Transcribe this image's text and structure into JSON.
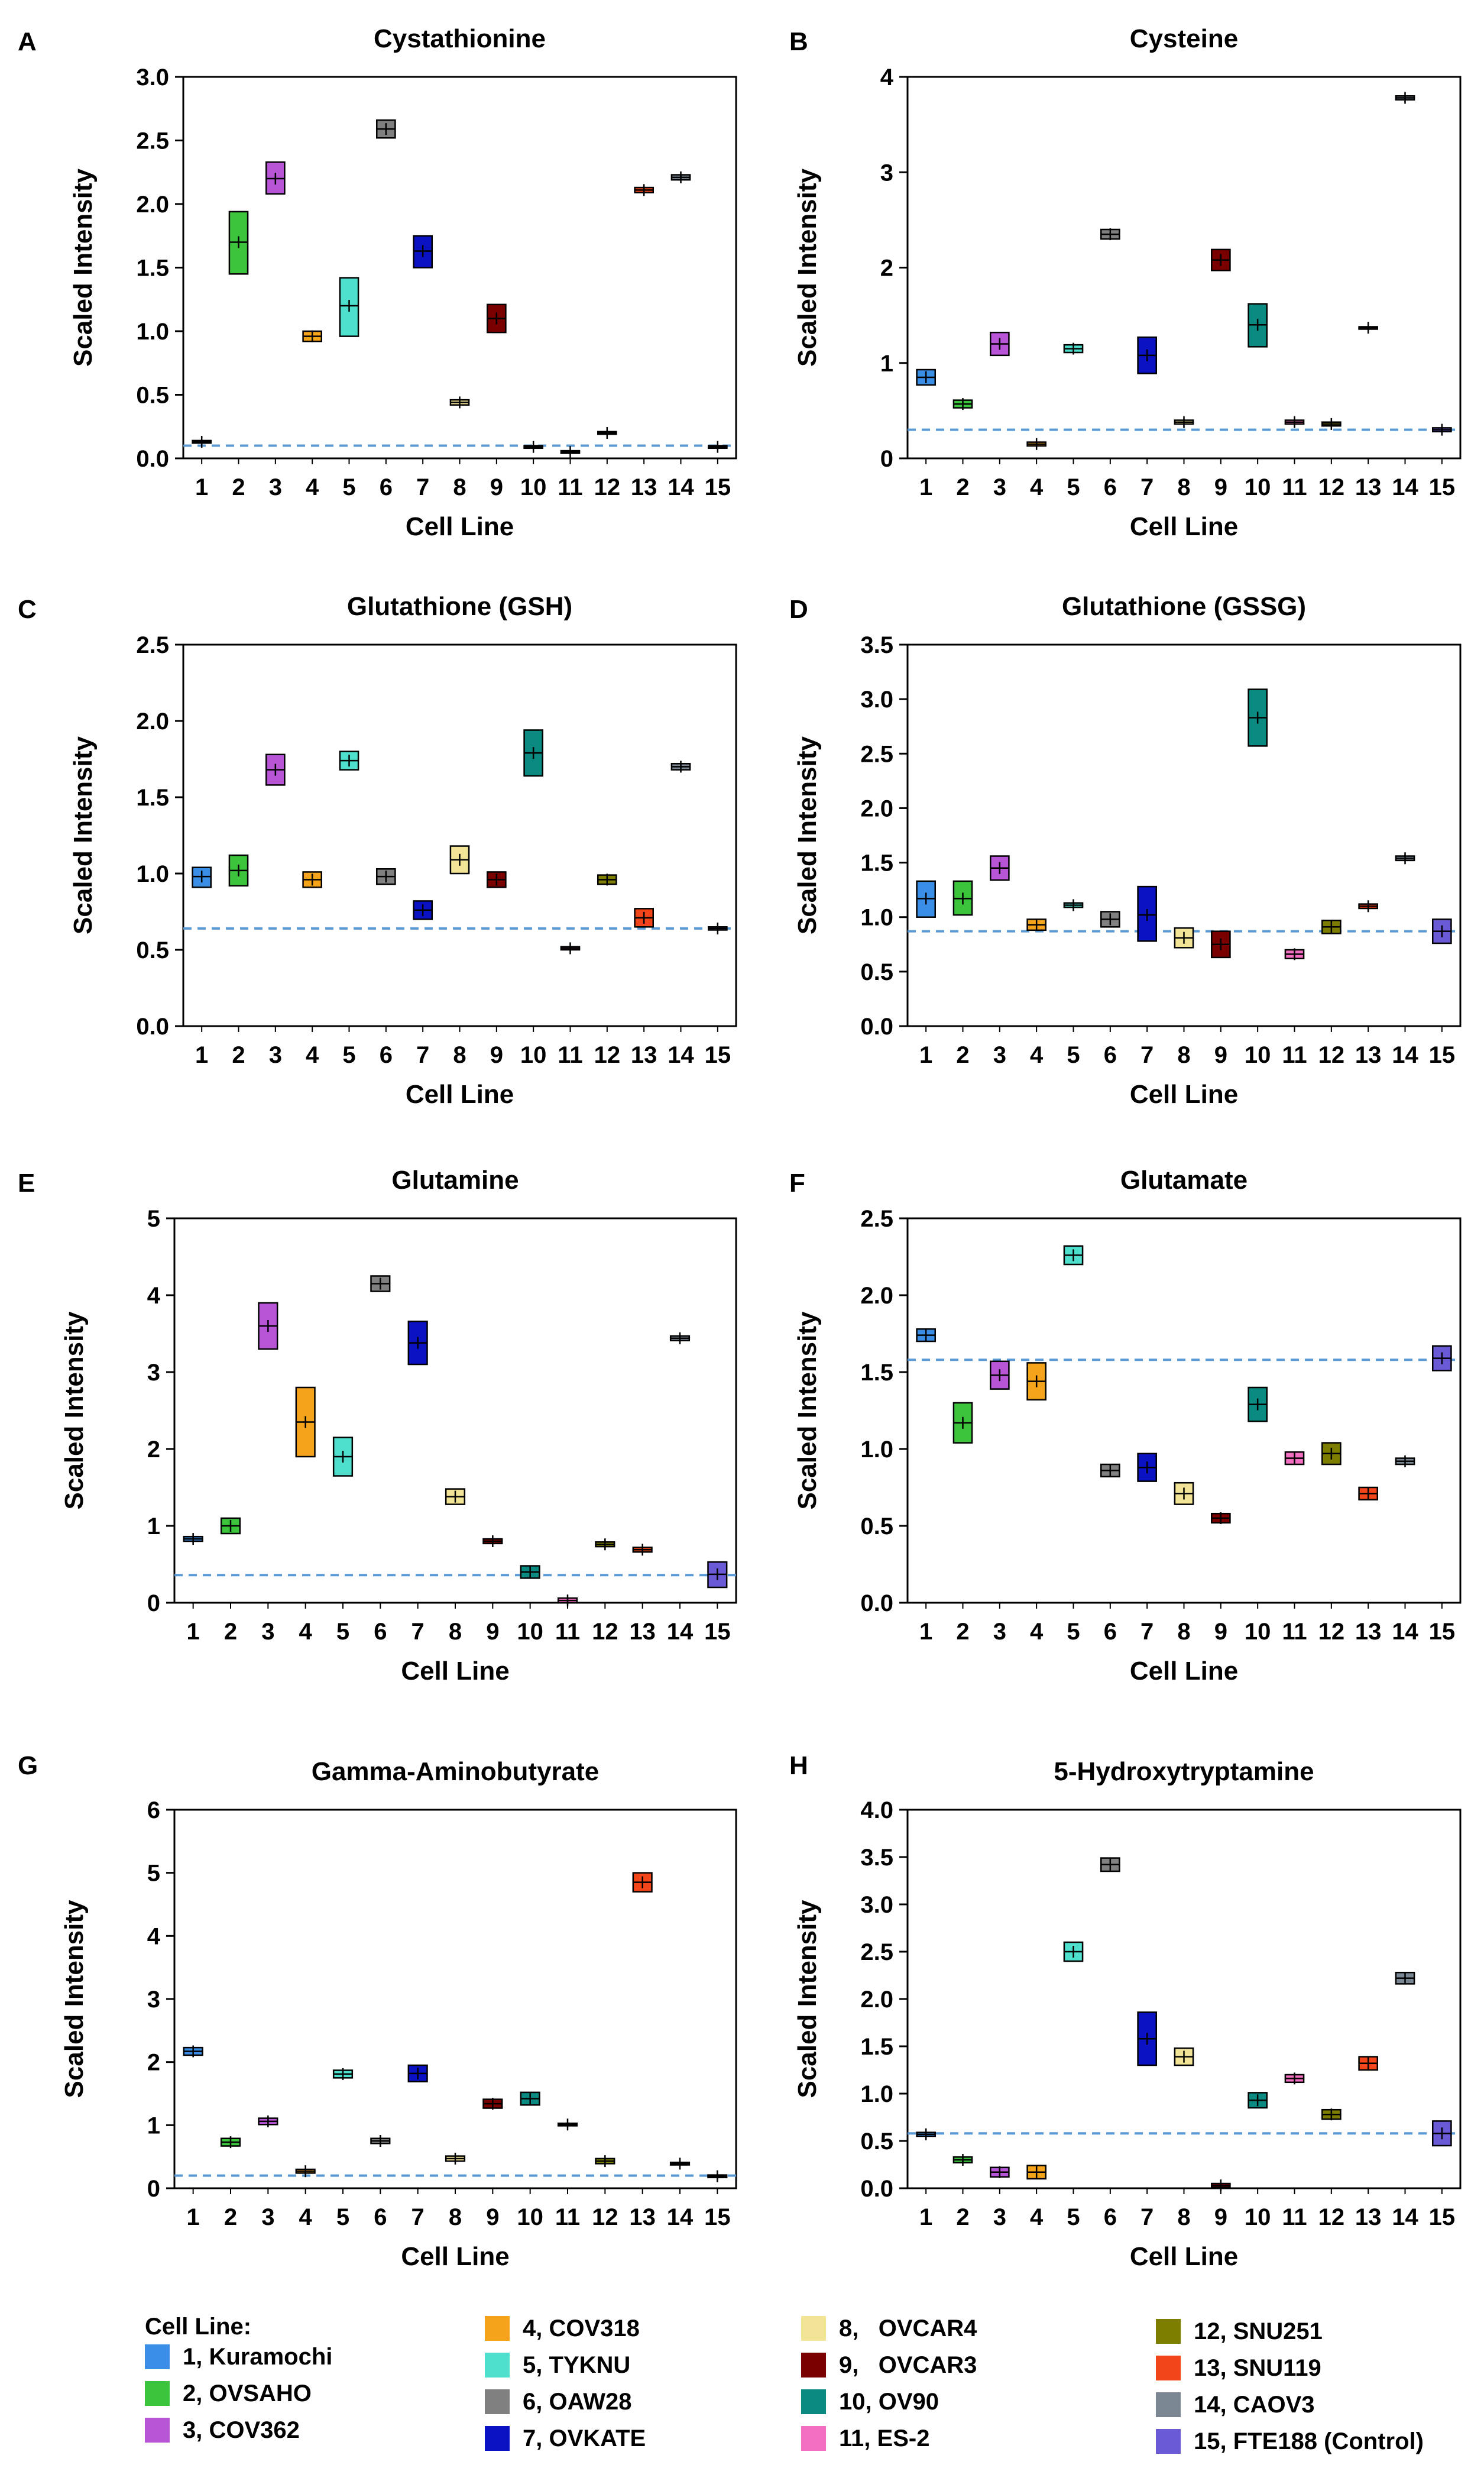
{
  "colors": {
    "cell_lines": [
      "#3a8ee6",
      "#3cc43c",
      "#b755d6",
      "#f5a31a",
      "#4ee0cc",
      "#808080",
      "#0b12c4",
      "#f2e496",
      "#7a0000",
      "#0a8a80",
      "#f26ec0",
      "#7d7d00",
      "#f2461a",
      "#7a8692",
      "#6a5ad6"
    ],
    "dashed_line": "#5b9bd5",
    "box_edge": "#000000"
  },
  "chart_data": [
    {
      "panel_label": "A",
      "type": "box",
      "title": "Cystathionine",
      "xlabel": "Cell Line",
      "ylabel": "Scaled Intensity",
      "ylim": [
        0,
        3.0
      ],
      "yticks": [
        "0.0",
        "0.5",
        "1.0",
        "1.5",
        "2.0",
        "2.5",
        "3.0"
      ],
      "categories": [
        "1",
        "2",
        "3",
        "4",
        "5",
        "6",
        "7",
        "8",
        "9",
        "10",
        "11",
        "12",
        "13",
        "14",
        "15"
      ],
      "low": [
        0.12,
        1.45,
        2.08,
        0.92,
        0.96,
        2.52,
        1.5,
        0.42,
        0.99,
        0.08,
        0.04,
        0.19,
        2.09,
        2.19,
        0.08
      ],
      "mid": [
        0.13,
        1.7,
        2.2,
        0.96,
        1.2,
        2.59,
        1.63,
        0.44,
        1.1,
        0.09,
        0.05,
        0.2,
        2.11,
        2.21,
        0.09
      ],
      "high": [
        0.14,
        1.94,
        2.33,
        1.0,
        1.42,
        2.66,
        1.75,
        0.46,
        1.21,
        0.1,
        0.06,
        0.21,
        2.13,
        2.23,
        0.1
      ],
      "control_line": 0.1
    },
    {
      "panel_label": "B",
      "type": "box",
      "title": "Cysteine",
      "xlabel": "Cell Line",
      "ylabel": "Scaled Intensity",
      "ylim": [
        0,
        4
      ],
      "yticks": [
        "0",
        "1",
        "2",
        "3",
        "4"
      ],
      "categories": [
        "1",
        "2",
        "3",
        "4",
        "5",
        "6",
        "7",
        "8",
        "9",
        "10",
        "11",
        "12",
        "13",
        "14",
        "15"
      ],
      "low": [
        0.77,
        0.53,
        1.08,
        0.13,
        1.11,
        2.3,
        0.89,
        0.36,
        1.97,
        1.17,
        0.36,
        0.34,
        1.36,
        3.76,
        0.28
      ],
      "mid": [
        0.85,
        0.57,
        1.2,
        0.15,
        1.15,
        2.35,
        1.08,
        0.38,
        2.08,
        1.4,
        0.38,
        0.36,
        1.37,
        3.78,
        0.3
      ],
      "high": [
        0.93,
        0.61,
        1.32,
        0.17,
        1.19,
        2.4,
        1.27,
        0.4,
        2.19,
        1.62,
        0.4,
        0.38,
        1.38,
        3.8,
        0.32
      ],
      "control_line": 0.3
    },
    {
      "panel_label": "C",
      "type": "box",
      "title": "Glutathione (GSH)",
      "xlabel": "Cell Line",
      "ylabel": "Scaled Intensity",
      "ylim": [
        0,
        2.5
      ],
      "yticks": [
        "0.0",
        "0.5",
        "1.0",
        "1.5",
        "2.0",
        "2.5"
      ],
      "categories": [
        "1",
        "2",
        "3",
        "4",
        "5",
        "6",
        "7",
        "8",
        "9",
        "10",
        "11",
        "12",
        "13",
        "14",
        "15"
      ],
      "low": [
        0.91,
        0.92,
        1.58,
        0.91,
        1.68,
        0.93,
        0.7,
        1.0,
        0.91,
        1.64,
        0.5,
        0.93,
        0.65,
        1.68,
        0.63
      ],
      "mid": [
        0.98,
        1.02,
        1.68,
        0.96,
        1.74,
        0.98,
        0.76,
        1.09,
        0.96,
        1.79,
        0.51,
        0.96,
        0.71,
        1.7,
        0.64
      ],
      "high": [
        1.04,
        1.12,
        1.78,
        1.01,
        1.8,
        1.03,
        0.82,
        1.18,
        1.01,
        1.94,
        0.52,
        0.99,
        0.77,
        1.72,
        0.65
      ],
      "control_line": 0.64
    },
    {
      "panel_label": "D",
      "type": "box",
      "title": "Glutathione (GSSG)",
      "xlabel": "Cell Line",
      "ylabel": "Scaled Intensity",
      "ylim": [
        0,
        3.5
      ],
      "yticks": [
        "0.0",
        "0.5",
        "1.0",
        "1.5",
        "2.0",
        "2.5",
        "3.0",
        "3.5"
      ],
      "categories": [
        "1",
        "2",
        "3",
        "4",
        "5",
        "6",
        "7",
        "8",
        "9",
        "10",
        "11",
        "12",
        "13",
        "14",
        "15"
      ],
      "low": [
        1.0,
        1.02,
        1.34,
        0.88,
        1.09,
        0.91,
        0.78,
        0.72,
        0.63,
        2.57,
        0.62,
        0.85,
        1.08,
        1.52,
        0.76
      ],
      "mid": [
        1.17,
        1.17,
        1.45,
        0.93,
        1.11,
        0.98,
        1.02,
        0.81,
        0.75,
        2.83,
        0.66,
        0.91,
        1.1,
        1.54,
        0.87
      ],
      "high": [
        1.33,
        1.33,
        1.56,
        0.98,
        1.13,
        1.05,
        1.28,
        0.9,
        0.87,
        3.09,
        0.7,
        0.97,
        1.12,
        1.56,
        0.98
      ],
      "control_line": 0.87
    },
    {
      "panel_label": "E",
      "type": "box",
      "title": "Glutamine",
      "xlabel": "Cell Line",
      "ylabel": "Scaled Intensity",
      "ylim": [
        0,
        5
      ],
      "yticks": [
        "0",
        "1",
        "2",
        "3",
        "4",
        "5"
      ],
      "categories": [
        "1",
        "2",
        "3",
        "4",
        "5",
        "6",
        "7",
        "8",
        "9",
        "10",
        "11",
        "12",
        "13",
        "14",
        "15"
      ],
      "low": [
        0.8,
        0.9,
        3.3,
        1.9,
        1.65,
        4.05,
        3.1,
        1.28,
        0.77,
        0.32,
        0.0,
        0.73,
        0.66,
        3.41,
        0.2
      ],
      "mid": [
        0.83,
        1.0,
        3.6,
        2.35,
        1.9,
        4.15,
        3.38,
        1.38,
        0.8,
        0.4,
        0.03,
        0.76,
        0.69,
        3.44,
        0.37
      ],
      "high": [
        0.86,
        1.1,
        3.9,
        2.8,
        2.15,
        4.25,
        3.66,
        1.48,
        0.83,
        0.48,
        0.06,
        0.79,
        0.72,
        3.47,
        0.53
      ],
      "control_line": 0.36
    },
    {
      "panel_label": "F",
      "type": "box",
      "title": "Glutamate",
      "xlabel": "Cell Line",
      "ylabel": "Scaled Intensity",
      "ylim": [
        0,
        2.5
      ],
      "yticks": [
        "0.0",
        "0.5",
        "1.0",
        "1.5",
        "2.0",
        "2.5"
      ],
      "categories": [
        "1",
        "2",
        "3",
        "4",
        "5",
        "6",
        "7",
        "8",
        "9",
        "10",
        "11",
        "12",
        "13",
        "14",
        "15"
      ],
      "low": [
        1.7,
        1.04,
        1.39,
        1.32,
        2.2,
        0.82,
        0.79,
        0.64,
        0.52,
        1.18,
        0.9,
        0.9,
        0.67,
        0.9,
        1.51
      ],
      "mid": [
        1.74,
        1.17,
        1.48,
        1.44,
        2.26,
        0.86,
        0.88,
        0.71,
        0.55,
        1.29,
        0.94,
        0.97,
        0.71,
        0.92,
        1.59
      ],
      "high": [
        1.78,
        1.3,
        1.57,
        1.56,
        2.32,
        0.9,
        0.97,
        0.78,
        0.58,
        1.4,
        0.98,
        1.04,
        0.75,
        0.94,
        1.67
      ],
      "control_line": 1.58
    },
    {
      "panel_label": "G",
      "type": "box",
      "title": "Gamma-Aminobutyrate",
      "xlabel": "Cell Line",
      "ylabel": "Scaled Intensity",
      "ylim": [
        0,
        6
      ],
      "yticks": [
        "0",
        "1",
        "2",
        "3",
        "4",
        "5",
        "6"
      ],
      "categories": [
        "1",
        "2",
        "3",
        "4",
        "5",
        "6",
        "7",
        "8",
        "9",
        "10",
        "11",
        "12",
        "13",
        "14",
        "15"
      ],
      "low": [
        2.11,
        0.67,
        1.01,
        0.24,
        1.75,
        0.71,
        1.69,
        0.43,
        1.27,
        1.32,
        0.99,
        0.39,
        4.7,
        0.37,
        0.17
      ],
      "mid": [
        2.17,
        0.73,
        1.06,
        0.27,
        1.81,
        0.75,
        1.82,
        0.47,
        1.34,
        1.42,
        1.01,
        0.43,
        4.85,
        0.39,
        0.19
      ],
      "high": [
        2.23,
        0.79,
        1.11,
        0.3,
        1.87,
        0.79,
        1.95,
        0.51,
        1.41,
        1.52,
        1.03,
        0.47,
        5.0,
        0.41,
        0.21
      ],
      "control_line": 0.2
    },
    {
      "panel_label": "H",
      "type": "box",
      "title": "5-Hydroxytryptamine",
      "xlabel": "Cell Line",
      "ylabel": "Scaled Intensity",
      "ylim": [
        0,
        4.0
      ],
      "yticks": [
        "0.0",
        "0.5",
        "1.0",
        "1.5",
        "2.0",
        "2.5",
        "3.0",
        "3.5",
        "4.0"
      ],
      "categories": [
        "1",
        "2",
        "3",
        "4",
        "5",
        "6",
        "7",
        "8",
        "9",
        "10",
        "11",
        "12",
        "13",
        "14",
        "15"
      ],
      "low": [
        0.55,
        0.27,
        0.12,
        0.1,
        2.4,
        3.35,
        1.3,
        1.3,
        0.01,
        0.85,
        1.12,
        0.73,
        1.25,
        2.16,
        0.45
      ],
      "mid": [
        0.57,
        0.3,
        0.17,
        0.17,
        2.5,
        3.42,
        1.58,
        1.39,
        0.03,
        0.93,
        1.16,
        0.78,
        1.32,
        2.22,
        0.58
      ],
      "high": [
        0.59,
        0.33,
        0.22,
        0.24,
        2.6,
        3.49,
        1.86,
        1.48,
        0.05,
        1.01,
        1.2,
        0.83,
        1.39,
        2.28,
        0.71
      ],
      "control_line": 0.58
    }
  ],
  "legend": {
    "title": "Cell Line:",
    "items": [
      "1, Kuramochi",
      "2, OVSAHO",
      "3, COV362",
      "4, COV318",
      "5, TYKNU",
      "6, OAW28",
      "7, OVKATE",
      "8,   OVCAR4",
      "9,   OVCAR3",
      "10, OV90",
      "11, ES-2",
      "12, SNU251",
      "13, SNU119",
      "14, CAOV3",
      "15, FTE188 (Control)"
    ]
  }
}
